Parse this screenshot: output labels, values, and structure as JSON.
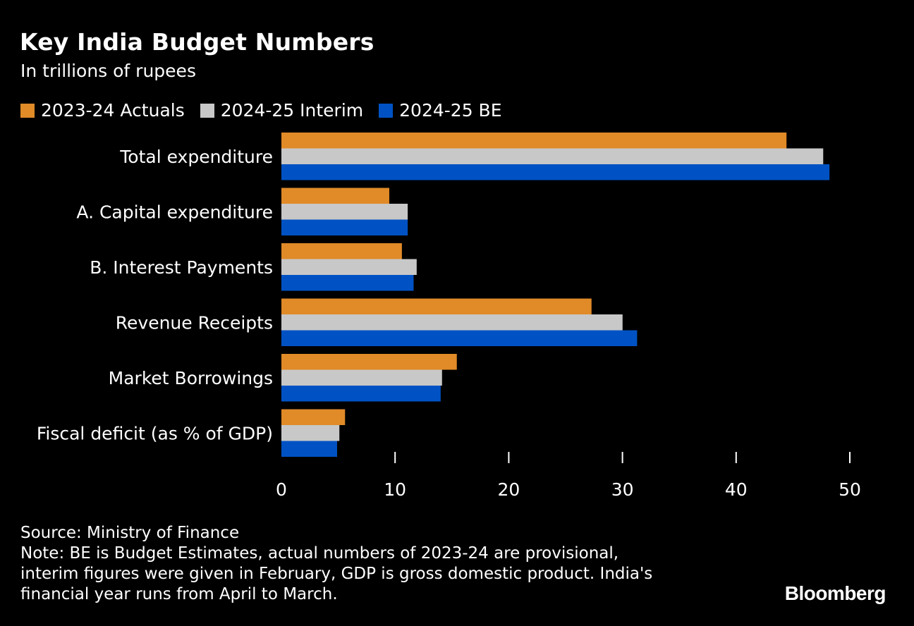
{
  "title": "Key India Budget Numbers",
  "subtitle": "In trillions of rupees",
  "legend": [
    {
      "label": "2023-24 Actuals",
      "color": "#e08a28"
    },
    {
      "label": "2024-25 Interim",
      "color": "#c8c8c8"
    },
    {
      "label": "2024-25 BE",
      "color": "#0052c4"
    }
  ],
  "chart_data": {
    "type": "bar",
    "orientation": "horizontal",
    "categories": [
      "Total expenditure",
      "A. Capital expenditure",
      "B. Interest Payments",
      "Revenue Receipts",
      "Market Borrowings",
      "Fiscal deficit (as % of GDP)"
    ],
    "series": [
      {
        "name": "2023-24 Actuals",
        "color": "#e08a28",
        "values": [
          44.43,
          9.49,
          10.6,
          27.28,
          15.43,
          5.6
        ]
      },
      {
        "name": "2024-25 Interim",
        "color": "#c8c8c8",
        "values": [
          47.66,
          11.11,
          11.9,
          30.01,
          14.13,
          5.1
        ]
      },
      {
        "name": "2024-25 BE",
        "color": "#0052c4",
        "values": [
          48.21,
          11.11,
          11.63,
          31.29,
          14.01,
          4.9
        ]
      }
    ],
    "xlim": [
      0,
      50
    ],
    "xticks": [
      0,
      10,
      20,
      30,
      40,
      50
    ],
    "xlabel": "",
    "ylabel": "",
    "grid": false,
    "legend_position": "top-left"
  },
  "footer": {
    "source": "Source: Ministry of Finance",
    "note_lines": [
      "Note: BE is Budget Estimates, actual numbers of 2023-24 are provisional,",
      "interim figures were given in February, GDP is gross domestic product. India's",
      "financial year runs from April to March."
    ]
  },
  "brand": "Bloomberg"
}
